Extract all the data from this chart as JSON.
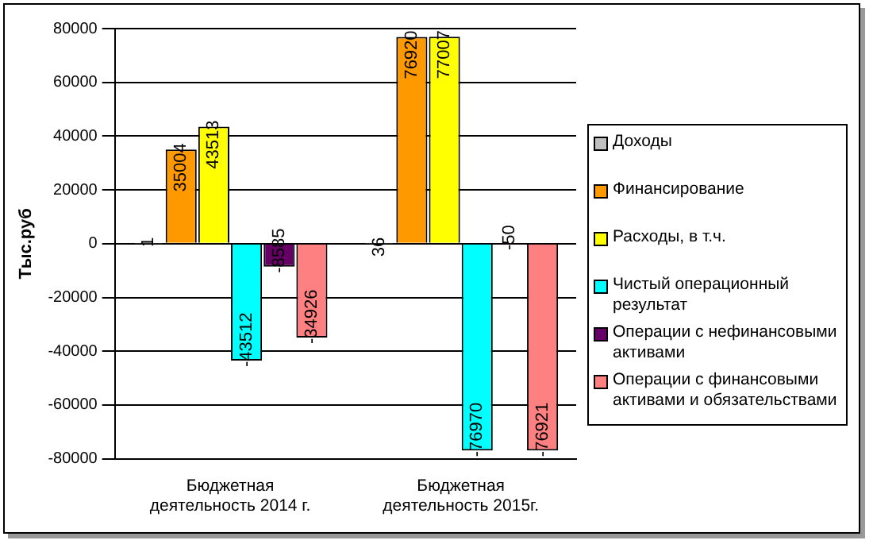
{
  "chart_data": {
    "type": "bar",
    "ylabel": "Тыс.руб",
    "categories": [
      "Бюджетная деятельность 2014 г.",
      "Бюджетная деятельность 2015г."
    ],
    "series": [
      {
        "name": "Доходы",
        "color": "#c0c0c0",
        "values": [
          1,
          36
        ]
      },
      {
        "name": "Финансирование",
        "color": "#ff9900",
        "values": [
          35004,
          76920
        ]
      },
      {
        "name": "Расходы, в т.ч.",
        "color": "#ffff00",
        "values": [
          43513,
          77007
        ]
      },
      {
        "name": "Чистый операционный результат",
        "color": "#00ffff",
        "values": [
          -43512,
          -76970
        ]
      },
      {
        "name": "Операции с нефинансовыми активами",
        "color": "#660066",
        "values": [
          -8585,
          -50
        ]
      },
      {
        "name": "Операции с финансовыми активами и обязательствами",
        "color": "#ff8080",
        "values": [
          -34926,
          -76921
        ]
      }
    ],
    "ylim": [
      -80000,
      80000
    ],
    "yticks": [
      -80000,
      -60000,
      -40000,
      -20000,
      0,
      20000,
      40000,
      60000,
      80000
    ],
    "grid": "y",
    "legend": "right",
    "data_labels": true
  }
}
